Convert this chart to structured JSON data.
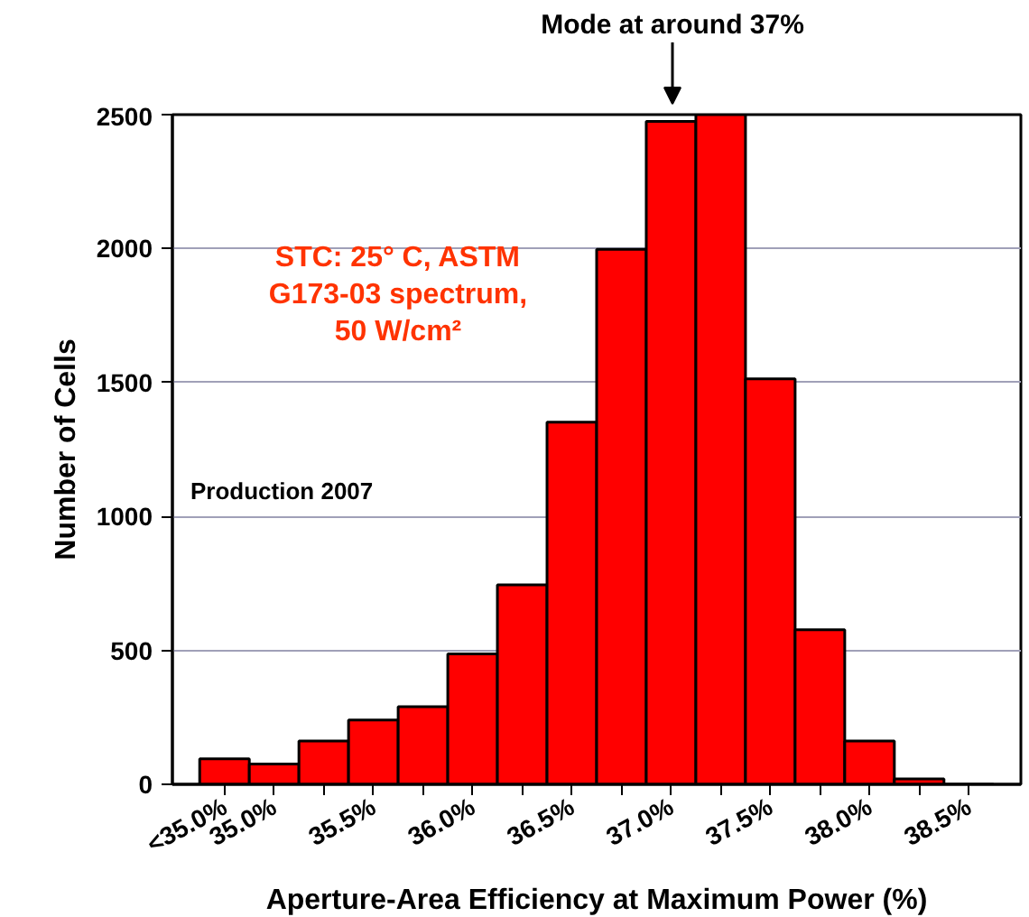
{
  "chart_data": {
    "type": "bar",
    "xlabel": "Aperture-Area Efficiency at Maximum Power (%)",
    "ylabel": "Number of Cells",
    "categories": [
      "<35.0%",
      "35.0%",
      null,
      "35.5%",
      null,
      "36.0%",
      null,
      "36.5%",
      null,
      "37.0%",
      null,
      "37.5%",
      null,
      "38.0%",
      null,
      "38.5%"
    ],
    "values": [
      95,
      76,
      162,
      240,
      290,
      487,
      745,
      1352,
      1997,
      2475,
      2500,
      1514,
      577,
      162,
      20,
      0
    ],
    "color": "#ff0000",
    "ylim": [
      0,
      2500
    ],
    "yticks": [
      0,
      500,
      1000,
      1500,
      2000,
      2500
    ],
    "grid": "y",
    "annotations": [
      "Mode at around 37%",
      "STC: 25° C, ASTM\nG173-03 spectrum,\n50 W/cm²",
      "Production 2007"
    ]
  }
}
